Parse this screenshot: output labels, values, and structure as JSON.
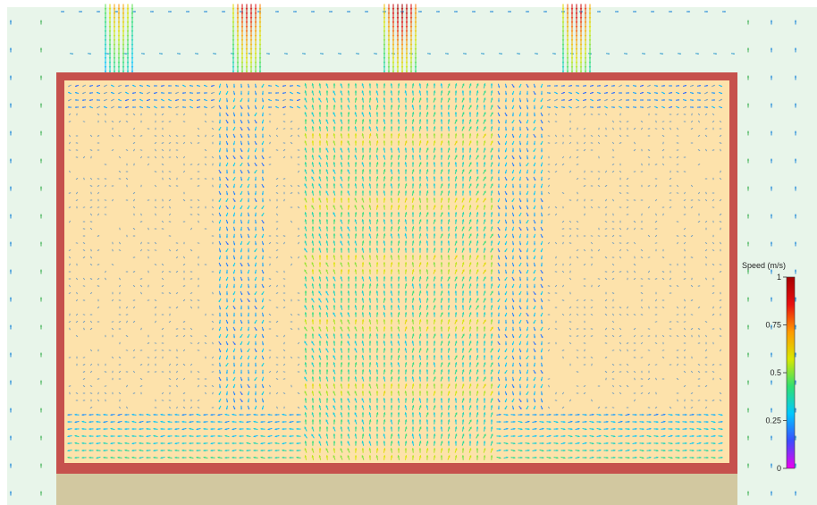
{
  "colorbar": {
    "title": "Speed (m/s)",
    "ticks": [
      {
        "value": 1,
        "label": "1"
      },
      {
        "value": 0.75,
        "label": "0.75"
      },
      {
        "value": 0.5,
        "label": "0.5"
      },
      {
        "value": 0.25,
        "label": "0.25"
      },
      {
        "value": 0,
        "label": "0"
      }
    ],
    "range": [
      0,
      1
    ],
    "gradient_colors": [
      "#ee00ee",
      "#3b4bff",
      "#00c8ff",
      "#2fe070",
      "#d8e800",
      "#ff9a00",
      "#e81010",
      "#a80000"
    ]
  },
  "colors": {
    "outside_background": "#e8f5ea",
    "room_fill": "#fde2ab",
    "wall": "#c6514d",
    "floor": "#d2c8a0"
  }
}
